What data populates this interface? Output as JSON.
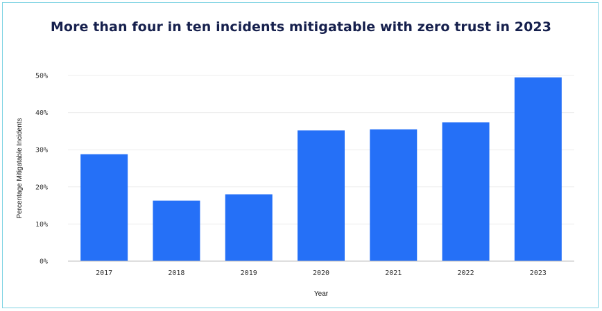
{
  "chart_data": {
    "type": "bar",
    "title": "More than four in ten incidents mitigatable with zero trust in 2023",
    "xlabel": "Year",
    "ylabel": "Percentage Mitigatable Incidents",
    "categories": [
      "2017",
      "2018",
      "2019",
      "2020",
      "2021",
      "2022",
      "2023"
    ],
    "values": [
      28.8,
      16.3,
      18.0,
      35.2,
      35.5,
      37.4,
      49.5
    ],
    "ylim": [
      0,
      50
    ],
    "yticks": [
      "0%",
      "10%",
      "20%",
      "30%",
      "40%",
      "50%"
    ],
    "grid": true,
    "legend": "none",
    "bar_color": "#2570f7"
  }
}
